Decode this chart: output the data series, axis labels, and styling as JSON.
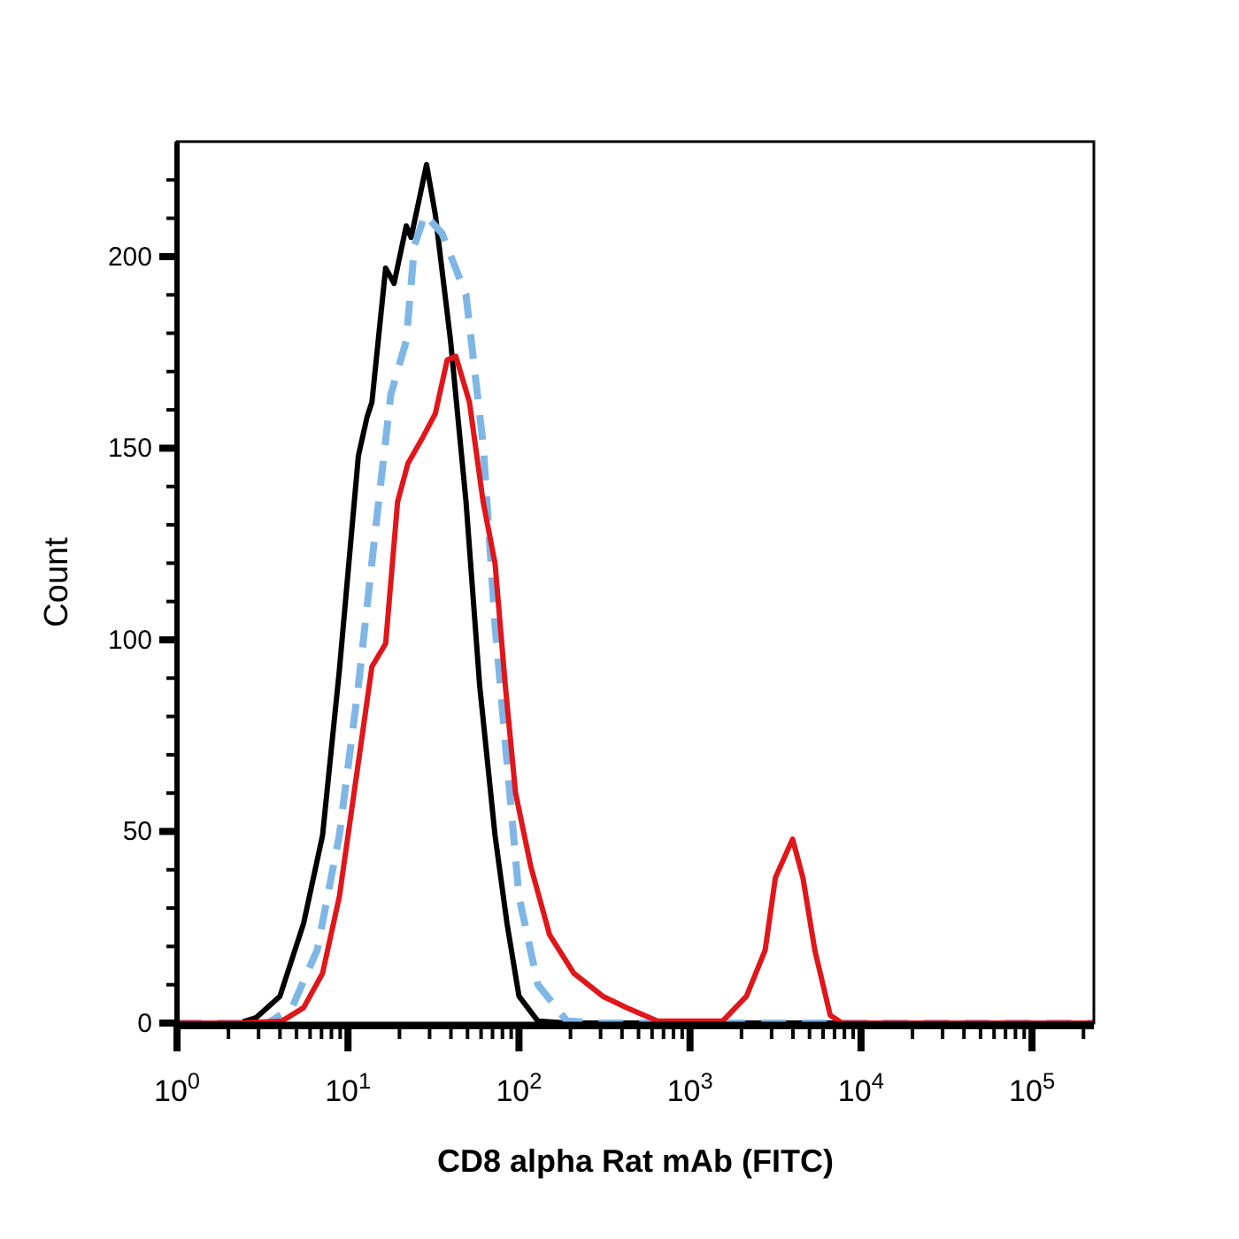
{
  "chart_data": {
    "type": "line",
    "xlabel": "CD8 alpha Rat mAb (FITC)",
    "ylabel": "Count",
    "log": "x",
    "grid": false,
    "xlim": [
      1,
      230000
    ],
    "ylim": [
      0,
      230
    ],
    "xticks": [
      {
        "value": 1,
        "label": "10$^{0}$"
      },
      {
        "value": 2,
        "label": null
      },
      {
        "value": 3,
        "label": null
      },
      {
        "value": 4,
        "label": null
      },
      {
        "value": 5,
        "label": null
      },
      {
        "value": 6,
        "label": null
      },
      {
        "value": 7,
        "label": null
      },
      {
        "value": 8,
        "label": null
      },
      {
        "value": 9,
        "label": null
      },
      {
        "value": 10,
        "label": "10$^{1}$"
      },
      {
        "value": 20,
        "label": null
      },
      {
        "value": 30,
        "label": null
      },
      {
        "value": 40,
        "label": null
      },
      {
        "value": 50,
        "label": null
      },
      {
        "value": 60,
        "label": null
      },
      {
        "value": 70,
        "label": null
      },
      {
        "value": 80,
        "label": null
      },
      {
        "value": 90,
        "label": null
      },
      {
        "value": 100,
        "label": "10$^{2}$"
      },
      {
        "value": 200,
        "label": null
      },
      {
        "value": 300,
        "label": null
      },
      {
        "value": 400,
        "label": null
      },
      {
        "value": 500,
        "label": null
      },
      {
        "value": 600,
        "label": null
      },
      {
        "value": 700,
        "label": null
      },
      {
        "value": 800,
        "label": null
      },
      {
        "value": 900,
        "label": null
      },
      {
        "value": 1000,
        "label": "10$^{3}$"
      },
      {
        "value": 2000,
        "label": null
      },
      {
        "value": 3000,
        "label": null
      },
      {
        "value": 4000,
        "label": null
      },
      {
        "value": 5000,
        "label": null
      },
      {
        "value": 6000,
        "label": null
      },
      {
        "value": 7000,
        "label": null
      },
      {
        "value": 8000,
        "label": null
      },
      {
        "value": 9000,
        "label": null
      },
      {
        "value": 10000,
        "label": "10$^{4}$"
      },
      {
        "value": 20000,
        "label": null
      },
      {
        "value": 30000,
        "label": null
      },
      {
        "value": 40000,
        "label": null
      },
      {
        "value": 50000,
        "label": null
      },
      {
        "value": 60000,
        "label": null
      },
      {
        "value": 70000,
        "label": null
      },
      {
        "value": 80000,
        "label": null
      },
      {
        "value": 90000,
        "label": null
      },
      {
        "value": 100000,
        "label": "10$^{5}$"
      },
      {
        "value": 200000,
        "label": null
      }
    ],
    "yticks": [
      0,
      {
        "value": 10,
        "label": null
      },
      {
        "value": 20,
        "label": null
      },
      {
        "value": 30,
        "label": null
      },
      {
        "value": 40,
        "label": null
      },
      50,
      {
        "value": 60,
        "label": null
      },
      {
        "value": 70,
        "label": null
      },
      {
        "value": 80,
        "label": null
      },
      {
        "value": 90,
        "label": null
      },
      100,
      {
        "value": 110,
        "label": null
      },
      {
        "value": 120,
        "label": null
      },
      {
        "value": 130,
        "label": null
      },
      {
        "value": 140,
        "label": null
      },
      150,
      {
        "value": 160,
        "label": null
      },
      {
        "value": 170,
        "label": null
      },
      {
        "value": 180,
        "label": null
      },
      {
        "value": 190,
        "label": null
      },
      200,
      {
        "value": 210,
        "label": null
      },
      {
        "value": 220,
        "label": null
      }
    ],
    "series": [
      {
        "color": "#000000",
        "line_style": "solid",
        "x": [
          1,
          2.3,
          2.9,
          4.0,
          5.5,
          7.1,
          8.9,
          11.5,
          12.9,
          13.8,
          16.6,
          18.6,
          21.9,
          23.4,
          28.8,
          32.4,
          39.8,
          49,
          58.9,
          72.4,
          85.1,
          100,
          129,
          191,
          230000
        ],
        "values": [
          0,
          0,
          1.4,
          7,
          26,
          49,
          92,
          148,
          158,
          162,
          197,
          193,
          208,
          205,
          224,
          211,
          178,
          136,
          88,
          49,
          26,
          7,
          0.5,
          0,
          0
        ]
      },
      {
        "color": "#7fb6e6",
        "line_style": "dashed",
        "x": [
          1,
          3.4,
          4.7,
          6.6,
          8.9,
          11.5,
          14.5,
          17.8,
          21.9,
          24.5,
          28.2,
          35.5,
          49,
          61.7,
          72.4,
          83.2,
          100,
          129,
          191,
          309,
          230000
        ],
        "values": [
          0,
          0,
          4,
          19,
          49,
          88,
          129,
          164,
          178,
          203,
          211,
          206,
          190,
          151,
          104,
          73,
          33,
          10,
          0.5,
          0,
          0
        ]
      },
      {
        "color": "#e0161b",
        "line_style": "solid",
        "x": [
          1,
          2.3,
          4.1,
          5.5,
          7.1,
          8.9,
          11.5,
          13.8,
          16.6,
          19.5,
          22.4,
          27.5,
          32.4,
          38,
          42.7,
          51.3,
          61.7,
          72.4,
          83.2,
          95.5,
          117,
          151,
          209,
          309,
          427,
          646,
          1550,
          2140,
          2750,
          3160,
          3980,
          4570,
          5370,
          6610,
          7760,
          230000
        ],
        "values": [
          0,
          0,
          0.5,
          4,
          13,
          33,
          68,
          93,
          99,
          136,
          146,
          153,
          159,
          173,
          174,
          162,
          136,
          120,
          88,
          60,
          41,
          23,
          13,
          7,
          4,
          0.5,
          0.5,
          7,
          19,
          38,
          48,
          38,
          19,
          2,
          0,
          0
        ]
      }
    ]
  }
}
